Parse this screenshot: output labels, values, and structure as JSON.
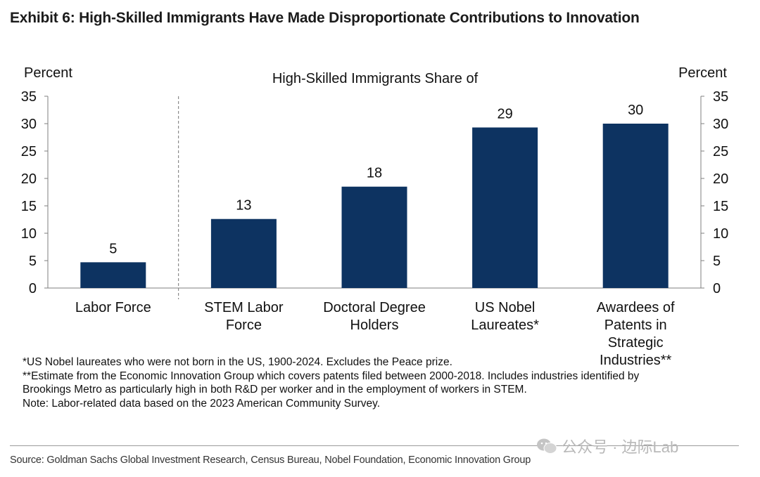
{
  "title": "Exhibit 6: High-Skilled Immigrants Have Made Disproportionate Contributions to Innovation",
  "chart_data": {
    "type": "bar",
    "subtitle": "High-Skilled Immigrants Share of",
    "ylabel_left": "Percent",
    "ylabel_right": "Percent",
    "ylim": [
      0,
      35
    ],
    "yticks": [
      0,
      5,
      10,
      15,
      20,
      25,
      30,
      35
    ],
    "categories": [
      [
        "Labor Force"
      ],
      [
        "STEM Labor",
        "Force"
      ],
      [
        "Doctoral Degree",
        "Holders"
      ],
      [
        "US Nobel",
        "Laureates*"
      ],
      [
        "Awardees of",
        "Patents in",
        "Strategic",
        "Industries**"
      ]
    ],
    "values": [
      4.7,
      12.6,
      18.5,
      29.3,
      30.0
    ],
    "data_labels": [
      "5",
      "13",
      "18",
      "29",
      "30"
    ],
    "bar_color": "#0d3361",
    "grid": false,
    "separator_after_index": 0
  },
  "notes": [
    "*US Nobel laureates who were not born in the US, 1900-2024. Excludes the Peace prize.",
    "**Estimate from the Economic Innovation Group which covers patents filed between 2000-2018. Includes industries identified by",
    "Brookings Metro as particularly high in both R&D per worker and in the employment of workers in STEM.",
    "Note: Labor-related data based on the 2023 American Community Survey."
  ],
  "source": "Source: Goldman Sachs Global Investment Research, Census Bureau, Nobel Foundation, Economic Innovation Group",
  "watermark": "公众号 · 边际Lab"
}
